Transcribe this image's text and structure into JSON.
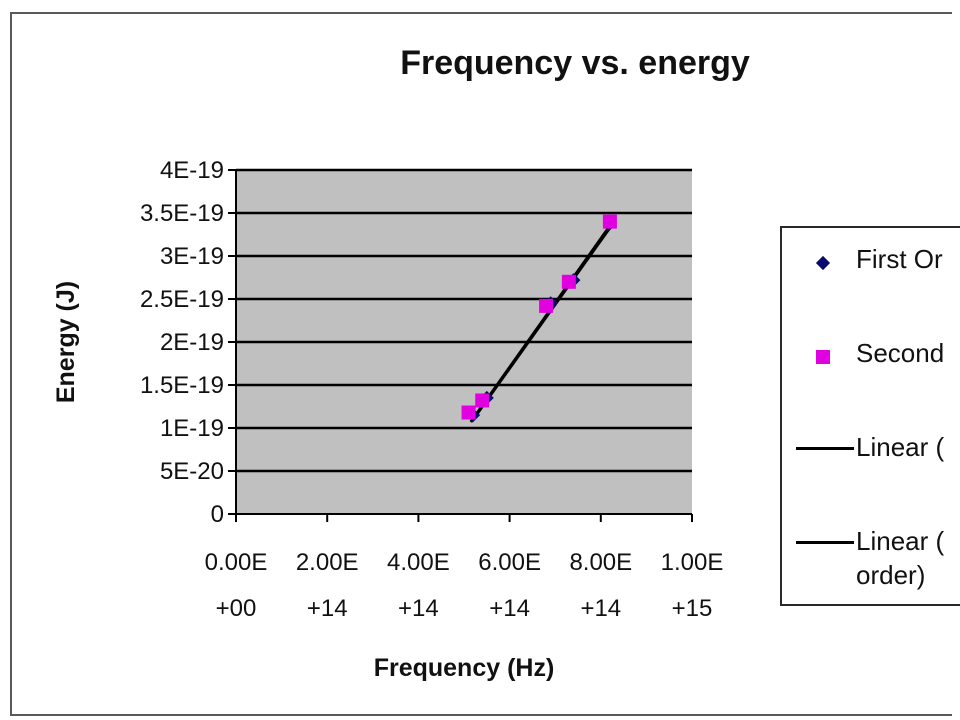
{
  "chart_data": {
    "type": "scatter",
    "title": "Frequency vs. energy",
    "xlabel": "Frequency (Hz)",
    "ylabel": "Energy (J)",
    "xlim": [
      0,
      1000000000000000.0
    ],
    "ylim": [
      0,
      4e-19
    ],
    "x_ticks": [
      [
        "0.00E",
        "+00"
      ],
      [
        "2.00E",
        "+14"
      ],
      [
        "4.00E",
        "+14"
      ],
      [
        "6.00E",
        "+14"
      ],
      [
        "8.00E",
        "+14"
      ],
      [
        "1.00E",
        "+15"
      ]
    ],
    "y_ticks": [
      "0",
      "5E-20",
      "1E-19",
      "1.5E-19",
      "2E-19",
      "2.5E-19",
      "3E-19",
      "3.5E-19",
      "4E-19"
    ],
    "grid": true,
    "plot_background": "#c0c0c0",
    "legend_position": "right",
    "series": [
      {
        "name": "First Order",
        "marker": "diamond",
        "color": "#0a0a6e",
        "x": [
          520000000000000.0,
          550000000000000.0,
          690000000000000.0,
          740000000000000.0,
          820000000000000.0
        ],
        "y": [
          1.15e-19,
          1.35e-19,
          2.45e-19,
          2.72e-19,
          3.38e-19
        ]
      },
      {
        "name": "Second Order",
        "marker": "square",
        "color": "#e000e0",
        "x": [
          510000000000000.0,
          540000000000000.0,
          680000000000000.0,
          730000000000000.0,
          820000000000000.0
        ],
        "y": [
          1.18e-19,
          1.32e-19,
          2.42e-19,
          2.7e-19,
          3.4e-19
        ]
      }
    ],
    "trendlines": [
      {
        "name": "Linear (First Order)",
        "x": [
          515000000000000.0,
          820000000000000.0
        ],
        "y": [
          1.07e-19,
          3.35e-19
        ],
        "color": "#000000"
      },
      {
        "name": "Linear (Second Order)",
        "x": [
          520000000000000.0,
          820000000000000.0
        ],
        "y": [
          1.1e-19,
          3.33e-19
        ],
        "color": "#000000"
      }
    ],
    "legend": [
      {
        "label": "First Or",
        "symbol": "diamond"
      },
      {
        "label": "Second",
        "symbol": "square"
      },
      {
        "label": "Linear (",
        "symbol": "line"
      },
      {
        "label": "Linear (\norder)",
        "symbol": "line"
      }
    ]
  }
}
